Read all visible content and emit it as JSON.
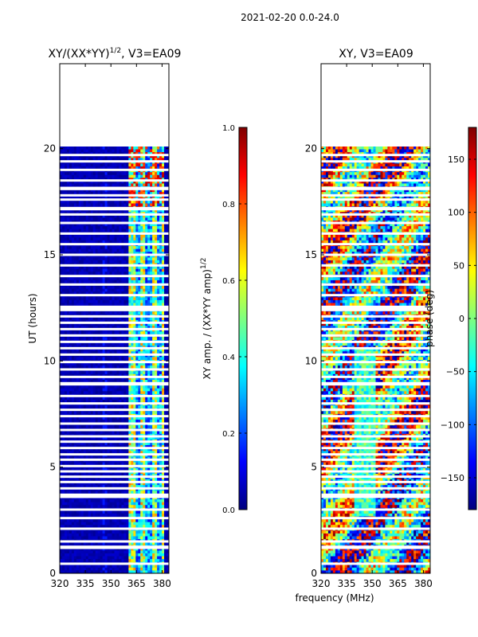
{
  "figure": {
    "suptitle": "2021-02-20 0.0-24.0",
    "xlabel": "frequency (MHz)"
  },
  "colorscale": {
    "name": "jet",
    "stops": [
      "#00007f",
      "#0000ff",
      "#007fff",
      "#00ffff",
      "#7fff7f",
      "#ffff00",
      "#ff7f00",
      "#ff0000",
      "#7f0000"
    ]
  },
  "chart_data": [
    {
      "type": "heatmap",
      "title_text": "XY/(XX*YY)",
      "title_exponent": "1/2",
      "title_suffix": ", V3=EA09",
      "xlabel": "",
      "ylabel": "UT (hours)",
      "x_tick_labels": [
        "320",
        "335",
        "350",
        "365",
        "380"
      ],
      "x_ticks": [
        320,
        335,
        350,
        365,
        380
      ],
      "xlim": [
        320,
        384
      ],
      "y_tick_labels": [
        "0",
        "5",
        "10",
        "15",
        "20"
      ],
      "y_ticks": [
        0,
        5,
        10,
        15,
        20
      ],
      "ylim": [
        0,
        24
      ],
      "data_end_hour": 20.1,
      "colorbar": {
        "label_text": "XY amp. / (XX*YY amp)",
        "label_exponent": "1/2",
        "range": [
          0,
          1
        ],
        "ticks": [
          0.0,
          0.2,
          0.4,
          0.6,
          0.8,
          1.0
        ],
        "tick_labels": [
          "0.0",
          "0.2",
          "0.4",
          "0.6",
          "0.8",
          "1.0"
        ]
      }
    },
    {
      "type": "heatmap",
      "title": "XY, V3=EA09",
      "xlabel": "",
      "ylabel": "",
      "x_tick_labels": [
        "320",
        "335",
        "350",
        "365",
        "380"
      ],
      "x_ticks": [
        320,
        335,
        350,
        365,
        380
      ],
      "xlim": [
        320,
        384
      ],
      "y_tick_labels": [
        "0",
        "5",
        "10",
        "15",
        "20"
      ],
      "y_ticks": [
        0,
        5,
        10,
        15,
        20
      ],
      "ylim": [
        0,
        24
      ],
      "data_end_hour": 20.1,
      "colorbar": {
        "label": "phase (deg)",
        "range": [
          -180,
          180
        ],
        "ticks": [
          -150,
          -100,
          -50,
          0,
          50,
          100,
          150
        ],
        "tick_labels": [
          "−150",
          "−100",
          "−50",
          "0",
          "50",
          "100",
          "150"
        ]
      }
    }
  ],
  "flagged_rows_hours": [
    0.45,
    1.2,
    1.25,
    1.5,
    2.1,
    2.6,
    3.0,
    3.6,
    3.65,
    3.7,
    4.0,
    4.3,
    4.55,
    4.8,
    5.05,
    5.35,
    5.6,
    5.9,
    6.2,
    6.45,
    6.75,
    7.05,
    7.4,
    7.7,
    8.0,
    8.35,
    8.9,
    8.95,
    9.25,
    9.6,
    9.95,
    10.3,
    10.6,
    10.9,
    11.2,
    11.5,
    11.8,
    12.1,
    12.4,
    12.5,
    12.55,
    13.1,
    13.6,
    14.0,
    14.5,
    15.0,
    15.5,
    16.0,
    16.5,
    16.9,
    17.15,
    17.2,
    17.6,
    17.8,
    18.1,
    18.15,
    18.5,
    19.0,
    19.4,
    19.7
  ]
}
